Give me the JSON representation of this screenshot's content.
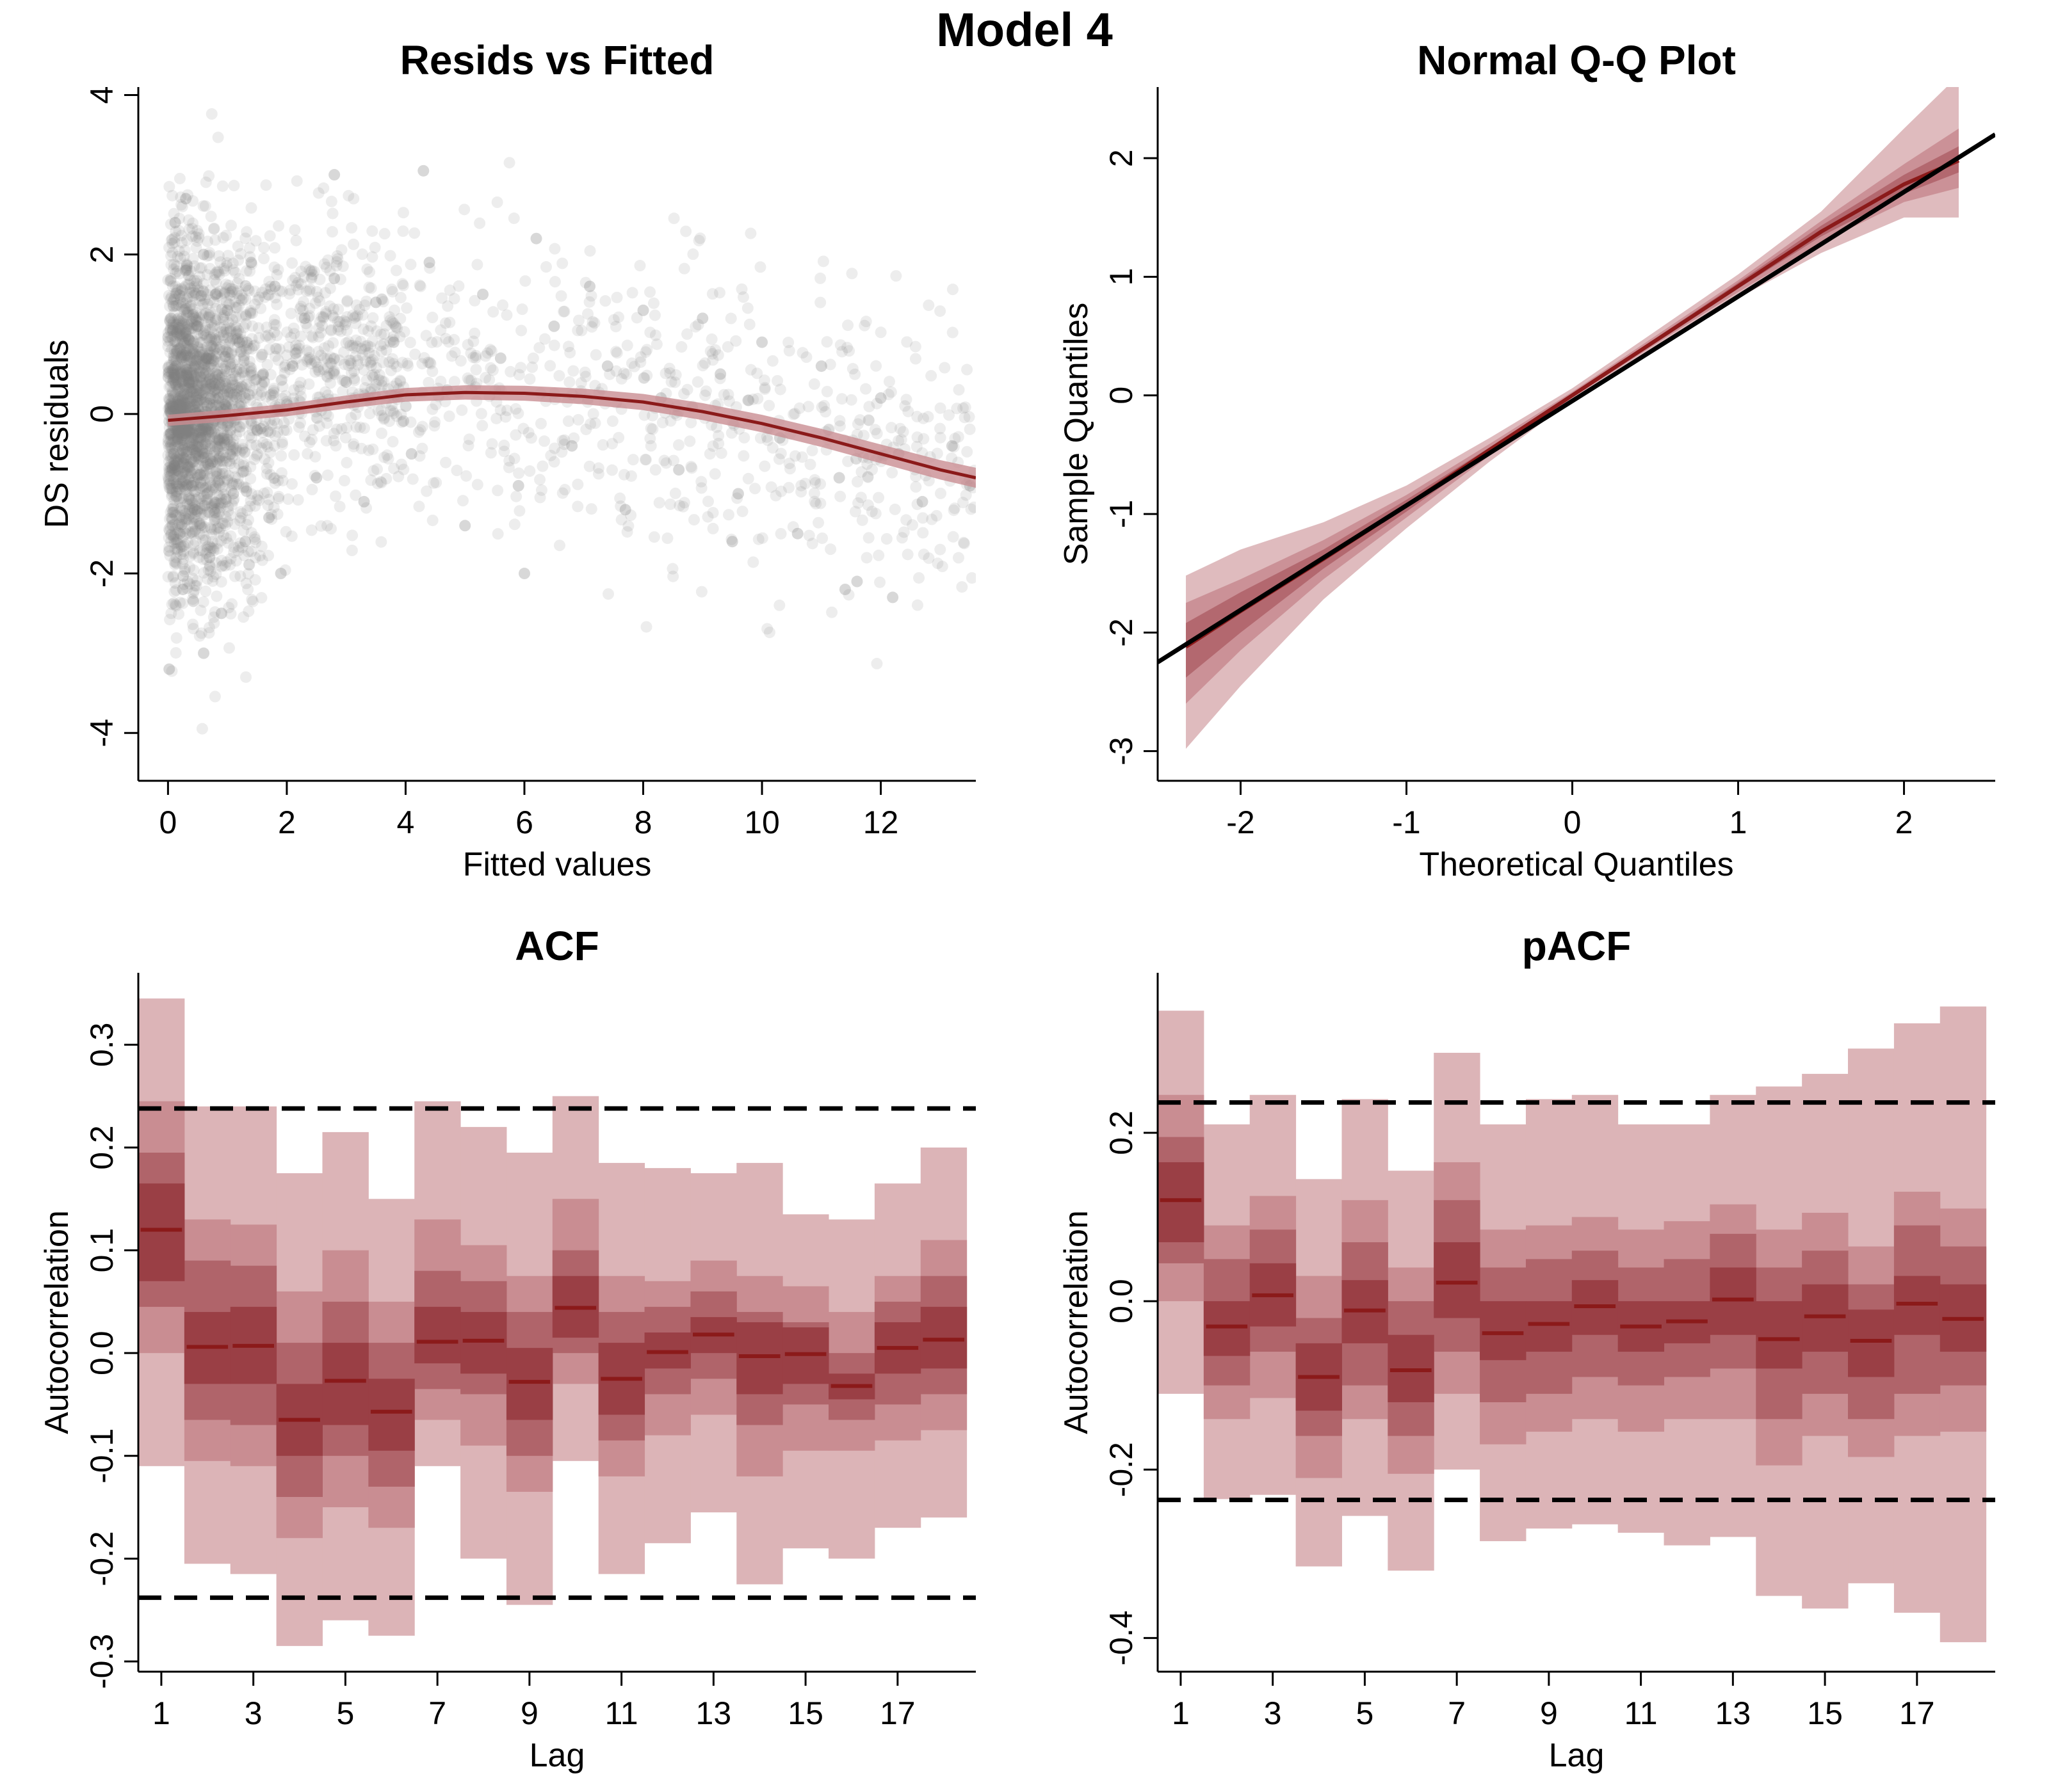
{
  "figure": {
    "title": "Model 4"
  },
  "colors": {
    "band_outer": "#dcb4b7",
    "band_mid": "#c98d92",
    "band_inner": "#b0646a",
    "band_core": "#9a3f45",
    "median": "#8b1a1a",
    "points": "#7f7f7f",
    "reference": "#000000"
  },
  "chart_data": [
    {
      "id": "resid",
      "type": "scatter",
      "title": "Resids vs Fitted",
      "xlabel": "Fitted values",
      "ylabel": "DS residuals",
      "xlim": [
        -0.5,
        13.6
      ],
      "ylim": [
        -4.6,
        4.1
      ],
      "xticks": [
        0,
        2,
        4,
        6,
        8,
        10,
        12
      ],
      "yticks": [
        -4,
        -2,
        0,
        2,
        4
      ],
      "grid": false,
      "smooth": {
        "x": [
          0,
          1,
          2,
          3,
          4,
          5,
          6,
          7,
          8,
          9,
          10,
          11,
          12,
          13,
          13.6
        ],
        "y": [
          -0.08,
          -0.02,
          0.05,
          0.15,
          0.24,
          0.27,
          0.26,
          0.22,
          0.15,
          0.03,
          -0.12,
          -0.3,
          -0.5,
          -0.7,
          -0.8
        ]
      },
      "points": [
        [
          0.05,
          1.2
        ],
        [
          0.1,
          -0.5
        ],
        [
          0.15,
          0.8
        ],
        [
          0.2,
          -1.5
        ],
        [
          0.08,
          0.1
        ],
        [
          0.3,
          1.8
        ],
        [
          0.25,
          -2.2
        ],
        [
          0.12,
          2.4
        ],
        [
          0.4,
          -0.9
        ],
        [
          0.35,
          0.4
        ],
        [
          0.5,
          1.1
        ],
        [
          0.45,
          -1.2
        ],
        [
          0.6,
          2.0
        ],
        [
          0.55,
          -0.3
        ],
        [
          0.7,
          -1.8
        ],
        [
          0.65,
          0.7
        ],
        [
          0.8,
          1.5
        ],
        [
          0.75,
          -0.6
        ],
        [
          0.9,
          -2.5
        ],
        [
          0.85,
          0.2
        ],
        [
          1.0,
          1.3
        ],
        [
          1.1,
          -1.0
        ],
        [
          1.2,
          0.9
        ],
        [
          1.3,
          -1.6
        ],
        [
          1.4,
          1.9
        ],
        [
          1.5,
          -0.2
        ],
        [
          1.6,
          0.5
        ],
        [
          1.7,
          -1.3
        ],
        [
          1.8,
          1.6
        ],
        [
          1.9,
          -2.0
        ],
        [
          2.1,
          0.6
        ],
        [
          2.3,
          1.2
        ],
        [
          2.5,
          -0.8
        ],
        [
          2.8,
          1.7
        ],
        [
          3.0,
          0.4
        ],
        [
          3.3,
          -1.1
        ],
        [
          3.5,
          1.4
        ],
        [
          3.8,
          0.9
        ],
        [
          4.1,
          -0.5
        ],
        [
          4.4,
          1.9
        ],
        [
          4.7,
          0.3
        ],
        [
          5.0,
          -1.4
        ],
        [
          5.3,
          1.5
        ],
        [
          5.6,
          0.7
        ],
        [
          5.9,
          -0.9
        ],
        [
          6.2,
          2.2
        ],
        [
          6.5,
          1.1
        ],
        [
          6.8,
          -0.4
        ],
        [
          7.1,
          1.6
        ],
        [
          7.4,
          0.6
        ],
        [
          7.7,
          -1.2
        ],
        [
          8.0,
          1.3
        ],
        [
          8.3,
          0.2
        ],
        [
          8.6,
          -0.7
        ],
        [
          9.0,
          1.2
        ],
        [
          9.3,
          0.5
        ],
        [
          9.6,
          -1.0
        ],
        [
          10.0,
          0.9
        ],
        [
          10.3,
          -0.3
        ],
        [
          10.6,
          -1.5
        ],
        [
          11.0,
          0.6
        ],
        [
          11.3,
          -0.8
        ],
        [
          11.6,
          -2.1
        ],
        [
          12.0,
          0.2
        ],
        [
          12.3,
          -0.5
        ],
        [
          12.7,
          -1.1
        ],
        [
          13.2,
          -0.4
        ],
        [
          13.5,
          -0.9
        ],
        [
          0.02,
          -3.2
        ],
        [
          0.3,
          2.7
        ],
        [
          2.8,
          3.0
        ],
        [
          4.3,
          3.05
        ],
        [
          0.6,
          -3.0
        ],
        [
          11.4,
          -2.2
        ],
        [
          12.2,
          -2.3
        ],
        [
          6.0,
          -2.0
        ],
        [
          9.5,
          -1.6
        ]
      ]
    },
    {
      "id": "qq",
      "type": "line",
      "title": "Normal Q-Q Plot",
      "xlabel": "Theoretical Quantiles",
      "ylabel": "Sample Quantiles",
      "xlim": [
        -2.5,
        2.55
      ],
      "ylim": [
        -3.25,
        2.6
      ],
      "xticks": [
        -2,
        -1,
        0,
        1,
        2
      ],
      "yticks": [
        -3,
        -2,
        -1,
        0,
        1,
        2
      ],
      "grid": false,
      "x": [
        -2.33,
        -2.0,
        -1.5,
        -1.0,
        -0.5,
        0.0,
        0.5,
        1.0,
        1.5,
        2.0,
        2.33
      ],
      "median": [
        -2.12,
        -1.82,
        -1.38,
        -0.93,
        -0.46,
        0.0,
        0.46,
        0.92,
        1.38,
        1.78,
        1.98
      ],
      "bands": [
        {
          "lower": [
            -2.98,
            -2.45,
            -1.72,
            -1.12,
            -0.56,
            -0.04,
            0.4,
            0.82,
            1.2,
            1.5,
            1.5
          ],
          "upper": [
            -1.52,
            -1.3,
            -1.07,
            -0.76,
            -0.36,
            0.06,
            0.54,
            1.02,
            1.55,
            2.25,
            2.7
          ]
        },
        {
          "lower": [
            -2.6,
            -2.15,
            -1.55,
            -1.03,
            -0.51,
            -0.02,
            0.43,
            0.87,
            1.29,
            1.63,
            1.75
          ],
          "upper": [
            -1.75,
            -1.55,
            -1.22,
            -0.84,
            -0.41,
            0.03,
            0.5,
            0.97,
            1.47,
            1.95,
            2.25
          ]
        },
        {
          "lower": [
            -2.38,
            -2.0,
            -1.46,
            -0.98,
            -0.48,
            -0.01,
            0.44,
            0.9,
            1.34,
            1.7,
            1.88
          ],
          "upper": [
            -1.92,
            -1.66,
            -1.3,
            -0.88,
            -0.44,
            0.02,
            0.48,
            0.95,
            1.43,
            1.86,
            2.1
          ]
        }
      ],
      "reference_line": {
        "x": [
          -2.5,
          2.55
        ],
        "y": [
          -2.25,
          2.2
        ]
      }
    },
    {
      "id": "acf",
      "type": "bar",
      "title": "ACF",
      "xlabel": "Lag",
      "ylabel": "Autocorrelation",
      "xlim": [
        0.5,
        18.7
      ],
      "ylim": [
        -0.31,
        0.37
      ],
      "xticks": [
        1,
        3,
        5,
        7,
        9,
        11,
        13,
        15,
        17
      ],
      "yticks": [
        -0.3,
        -0.2,
        -0.1,
        0.0,
        0.1,
        0.2,
        0.3
      ],
      "ytick_labels": [
        "-0.3",
        "-0.2",
        "-0.1",
        "0.0",
        "0.1",
        "0.2",
        "0.3"
      ],
      "grid": false,
      "lags": [
        1,
        2,
        3,
        4,
        5,
        6,
        7,
        8,
        9,
        10,
        11,
        12,
        13,
        14,
        15,
        16,
        17,
        18
      ],
      "median": [
        0.12,
        0.006,
        0.007,
        -0.065,
        -0.027,
        -0.057,
        0.011,
        0.012,
        -0.028,
        0.044,
        -0.025,
        0.001,
        0.018,
        -0.003,
        -0.001,
        -0.032,
        0.005,
        0.013
      ],
      "bands": [
        {
          "lower": [
            -0.11,
            -0.205,
            -0.215,
            -0.285,
            -0.26,
            -0.275,
            -0.11,
            -0.2,
            -0.245,
            -0.105,
            -0.215,
            -0.185,
            -0.155,
            -0.225,
            -0.19,
            -0.2,
            -0.17,
            -0.16
          ],
          "upper": [
            0.345,
            0.24,
            0.24,
            0.175,
            0.215,
            0.15,
            0.245,
            0.22,
            0.195,
            0.25,
            0.185,
            0.18,
            0.175,
            0.185,
            0.135,
            0.13,
            0.165,
            0.2
          ]
        },
        {
          "lower": [
            -0.0,
            -0.105,
            -0.11,
            -0.18,
            -0.15,
            -0.17,
            -0.065,
            -0.09,
            -0.135,
            -0.03,
            -0.12,
            -0.08,
            -0.06,
            -0.12,
            -0.095,
            -0.095,
            -0.085,
            -0.075
          ],
          "upper": [
            0.245,
            0.13,
            0.125,
            0.06,
            0.1,
            0.05,
            0.13,
            0.105,
            0.075,
            0.15,
            0.075,
            0.07,
            0.09,
            0.075,
            0.065,
            0.04,
            0.075,
            0.11
          ]
        },
        {
          "lower": [
            0.045,
            -0.065,
            -0.07,
            -0.14,
            -0.1,
            -0.13,
            -0.035,
            -0.04,
            -0.1,
            0.0,
            -0.085,
            -0.04,
            -0.025,
            -0.07,
            -0.05,
            -0.065,
            -0.05,
            -0.04
          ],
          "upper": [
            0.195,
            0.09,
            0.085,
            0.01,
            0.05,
            0.01,
            0.08,
            0.07,
            0.04,
            0.1,
            0.04,
            0.045,
            0.06,
            0.04,
            0.03,
            0.0,
            0.05,
            0.075
          ]
        },
        {
          "lower": [
            0.07,
            -0.03,
            -0.03,
            -0.1,
            -0.07,
            -0.095,
            -0.01,
            -0.02,
            -0.065,
            0.015,
            -0.06,
            -0.015,
            0.0,
            -0.04,
            -0.03,
            -0.045,
            -0.02,
            -0.015
          ],
          "upper": [
            0.165,
            0.04,
            0.045,
            -0.03,
            0.01,
            -0.025,
            0.045,
            0.04,
            0.005,
            0.075,
            0.01,
            0.02,
            0.035,
            0.03,
            0.025,
            -0.02,
            0.03,
            0.045
          ]
        }
      ],
      "threshold": 0.238
    },
    {
      "id": "pacf",
      "type": "bar",
      "title": "pACF",
      "xlabel": "Lag",
      "ylabel": "Autocorrelation",
      "xlim": [
        0.5,
        18.7
      ],
      "ylim": [
        -0.44,
        0.39
      ],
      "xticks": [
        1,
        3,
        5,
        7,
        9,
        11,
        13,
        15,
        17
      ],
      "yticks": [
        -0.4,
        -0.2,
        0.0,
        0.2
      ],
      "ytick_labels": [
        "-0.4",
        "-0.2",
        "0.0",
        "0.2"
      ],
      "grid": false,
      "lags": [
        1,
        2,
        3,
        4,
        5,
        6,
        7,
        8,
        9,
        10,
        11,
        12,
        13,
        14,
        15,
        16,
        17,
        18
      ],
      "median": [
        0.12,
        -0.03,
        0.007,
        -0.09,
        -0.011,
        -0.082,
        0.022,
        -0.038,
        -0.027,
        -0.006,
        -0.03,
        -0.024,
        0.002,
        -0.045,
        -0.018,
        -0.047,
        -0.003,
        -0.021
      ],
      "bands": [
        {
          "lower": [
            -0.11,
            -0.235,
            -0.23,
            -0.315,
            -0.255,
            -0.32,
            -0.2,
            -0.285,
            -0.27,
            -0.265,
            -0.275,
            -0.29,
            -0.28,
            -0.35,
            -0.365,
            -0.335,
            -0.37,
            -0.405
          ],
          "upper": [
            0.345,
            0.21,
            0.245,
            0.145,
            0.24,
            0.155,
            0.295,
            0.21,
            0.24,
            0.245,
            0.21,
            0.21,
            0.245,
            0.255,
            0.27,
            0.3,
            0.33,
            0.35
          ]
        },
        {
          "lower": [
            -0.0,
            -0.14,
            -0.115,
            -0.21,
            -0.14,
            -0.205,
            -0.11,
            -0.17,
            -0.155,
            -0.14,
            -0.155,
            -0.14,
            -0.14,
            -0.195,
            -0.16,
            -0.185,
            -0.16,
            -0.155
          ],
          "upper": [
            0.245,
            0.09,
            0.125,
            0.03,
            0.12,
            0.04,
            0.165,
            0.085,
            0.09,
            0.1,
            0.085,
            0.095,
            0.115,
            0.085,
            0.105,
            0.065,
            0.13,
            0.11
          ]
        },
        {
          "lower": [
            0.045,
            -0.1,
            -0.06,
            -0.16,
            -0.1,
            -0.16,
            -0.06,
            -0.12,
            -0.11,
            -0.09,
            -0.1,
            -0.09,
            -0.08,
            -0.14,
            -0.11,
            -0.14,
            -0.11,
            -0.1
          ],
          "upper": [
            0.195,
            0.05,
            0.085,
            -0.02,
            0.07,
            0.0,
            0.12,
            0.04,
            0.05,
            0.06,
            0.04,
            0.05,
            0.08,
            0.04,
            0.06,
            0.02,
            0.09,
            0.065
          ]
        },
        {
          "lower": [
            0.07,
            -0.065,
            -0.03,
            -0.13,
            -0.05,
            -0.12,
            -0.02,
            -0.07,
            -0.06,
            -0.04,
            -0.06,
            -0.05,
            -0.04,
            -0.08,
            -0.06,
            -0.09,
            -0.04,
            -0.06
          ],
          "upper": [
            0.165,
            0.0,
            0.045,
            -0.05,
            0.025,
            -0.04,
            0.07,
            0.0,
            0.0,
            0.025,
            0.0,
            0.0,
            0.04,
            0.0,
            0.02,
            -0.01,
            0.03,
            0.02
          ]
        }
      ],
      "threshold": 0.236
    }
  ]
}
